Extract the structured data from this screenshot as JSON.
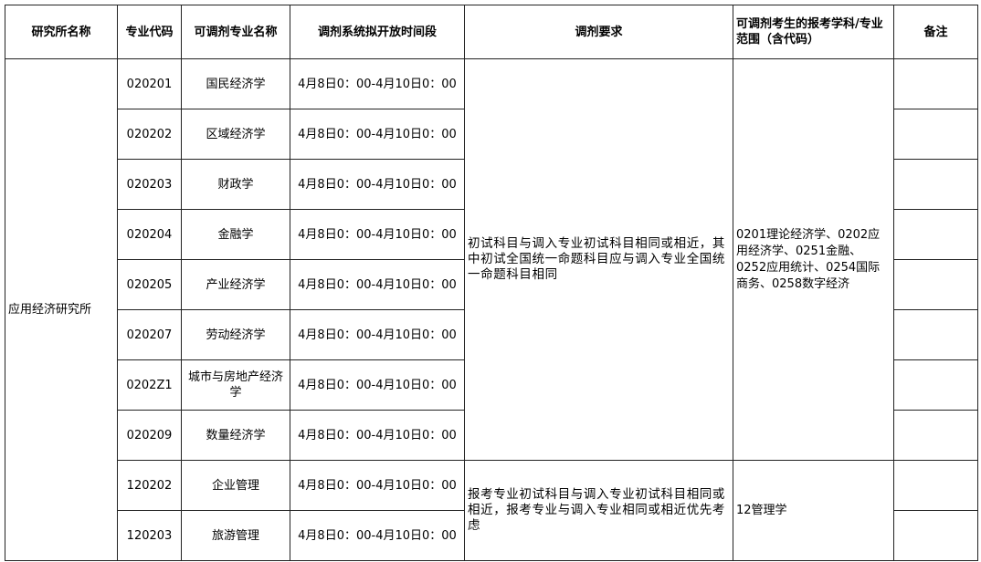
{
  "headers": [
    "研究所名称",
    "专业代码",
    "可调剂专业名称",
    "调剂系统拟开放时间段",
    "调剂要求",
    "可调剂考生的报考学科/专业范围（含代码）",
    "备注"
  ],
  "institute": "应用经济研究所",
  "rows": [
    {
      "code": "020201",
      "name": "国民经济学",
      "time": "4月8日0：00-4月10日0：00",
      "note": ""
    },
    {
      "code": "020202",
      "name": "区域经济学",
      "time": "4月8日0：00-4月10日0：00",
      "note": ""
    },
    {
      "code": "020203",
      "name": "财政学",
      "time": "4月8日0：00-4月10日0：00",
      "note": ""
    },
    {
      "code": "020204",
      "name": "金融学",
      "time": "4月8日0：00-4月10日0：00",
      "note": ""
    },
    {
      "code": "020205",
      "name": "产业经济学",
      "time": "4月8日0：00-4月10日0：00",
      "note": ""
    },
    {
      "code": "020207",
      "name": "劳动经济学",
      "time": "4月8日0：00-4月10日0：00",
      "note": ""
    },
    {
      "code": "0202Z1",
      "name": "城市与房地产经济学",
      "time": "4月8日0：00-4月10日0：00",
      "note": ""
    },
    {
      "code": "020209",
      "name": "数量经济学",
      "time": "4月8日0：00-4月10日0：00",
      "note": ""
    },
    {
      "code": "120202",
      "name": "企业管理",
      "time": "4月8日0：00-4月10日0：00",
      "note": ""
    },
    {
      "code": "120203",
      "name": "旅游管理",
      "time": "4月8日0：00-4月10日0：00",
      "note": ""
    }
  ],
  "groups": [
    {
      "requirement": "初试科目与调入专业初试科目相同或相近，其中初试全国统一命题科目应与调入专业全国统一命题科目相同",
      "range": "0201理论经济学、0202应用经济学、0251金融、0252应用统计、0254国际商务、0258数字经济"
    },
    {
      "requirement": "报考专业初试科目与调入专业初试科目相同或相近，报考专业与调入专业相同或相近优先考虑",
      "range": "12管理学"
    }
  ]
}
